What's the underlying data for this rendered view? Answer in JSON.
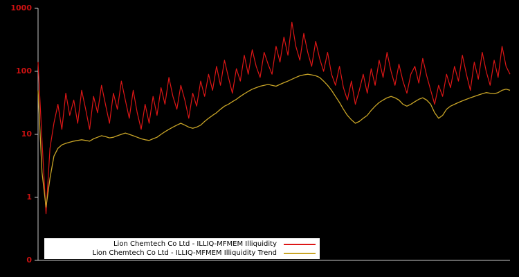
{
  "chart_data": {
    "type": "line",
    "title": "",
    "xlabel": "",
    "ylabel": "",
    "y_scale": "log",
    "ylim_log": [
      0.1,
      1000
    ],
    "yticks": [
      "1000",
      "100",
      "10",
      "1",
      "0"
    ],
    "grid": false,
    "legend_position": "bottom-left",
    "background_color": "#000000",
    "axis_line_color": "#c8c8c8",
    "tick_label_color": "#cc1111",
    "series": [
      {
        "name": "Lion Chemtech Co Ltd - ILLIQ-MFMEM Illiquidity",
        "color": "#dd1616",
        "values": [
          140,
          8,
          0.55,
          6,
          15,
          30,
          12,
          45,
          20,
          35,
          15,
          50,
          25,
          12,
          40,
          22,
          60,
          30,
          15,
          45,
          25,
          70,
          35,
          18,
          50,
          22,
          12,
          30,
          15,
          40,
          20,
          55,
          30,
          80,
          40,
          25,
          60,
          35,
          18,
          45,
          28,
          70,
          40,
          90,
          50,
          120,
          60,
          150,
          80,
          45,
          110,
          70,
          180,
          90,
          220,
          120,
          80,
          200,
          130,
          90,
          250,
          140,
          350,
          180,
          600,
          250,
          150,
          400,
          200,
          120,
          300,
          160,
          100,
          200,
          90,
          60,
          120,
          55,
          35,
          70,
          30,
          50,
          90,
          45,
          110,
          60,
          150,
          80,
          200,
          100,
          60,
          130,
          70,
          45,
          90,
          120,
          65,
          160,
          85,
          50,
          30,
          60,
          40,
          90,
          55,
          120,
          70,
          180,
          90,
          50,
          140,
          75,
          200,
          100,
          60,
          150,
          80,
          250,
          120,
          90
        ]
      },
      {
        "name": "Lion Chemtech Co Ltd - ILLIQ-MFMEM Illiquidity Trend",
        "color": "#c9a527",
        "values": [
          50,
          2.5,
          0.7,
          2,
          4.5,
          6,
          6.8,
          7.2,
          7.5,
          7.8,
          8,
          8.2,
          8,
          7.8,
          8.5,
          9,
          9.5,
          9.2,
          8.8,
          9,
          9.5,
          10,
          10.5,
          10,
          9.5,
          9,
          8.5,
          8.2,
          8,
          8.5,
          9,
          10,
          11,
          12,
          13,
          14,
          15,
          14,
          13,
          12.5,
          13,
          14,
          16,
          18,
          20,
          22,
          25,
          28,
          30,
          33,
          36,
          40,
          44,
          48,
          52,
          55,
          58,
          60,
          62,
          60,
          58,
          62,
          66,
          70,
          75,
          80,
          85,
          88,
          90,
          88,
          85,
          80,
          70,
          60,
          50,
          40,
          32,
          25,
          20,
          17,
          15,
          16,
          18,
          20,
          24,
          28,
          32,
          35,
          38,
          40,
          38,
          35,
          30,
          28,
          30,
          33,
          36,
          38,
          35,
          30,
          22,
          18,
          20,
          25,
          28,
          30,
          32,
          34,
          36,
          38,
          40,
          42,
          44,
          46,
          45,
          44,
          46,
          50,
          52,
          50
        ]
      }
    ]
  }
}
